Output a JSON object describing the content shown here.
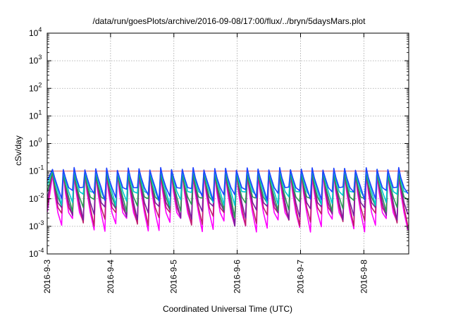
{
  "chart_data": {
    "type": "line",
    "title": "/data/run/goesPlots/archive/2016-09-08/17:00/flux/../bryn/5daysMars.plot",
    "xlabel": "Coordinated Universal Time (UTC)",
    "ylabel": "cSv/day",
    "y_scale": "log",
    "ylim": [
      0.0001,
      10000
    ],
    "xlim": [
      "2016-09-03T00:00",
      "2016-09-08T17:00"
    ],
    "x_ticks": [
      "2016-9-3",
      "2016-9-4",
      "2016-9-5",
      "2016-9-6",
      "2016-9-7",
      "2016-9-8"
    ],
    "y_ticks": [
      {
        "base": "10",
        "exp": "-4"
      },
      {
        "base": "10",
        "exp": "-3"
      },
      {
        "base": "10",
        "exp": "-2"
      },
      {
        "base": "10",
        "exp": "-1"
      },
      {
        "base": "10",
        "exp": "0"
      },
      {
        "base": "10",
        "exp": "1"
      },
      {
        "base": "10",
        "exp": "2"
      },
      {
        "base": "10",
        "exp": "3"
      },
      {
        "base": "10",
        "exp": "4"
      }
    ],
    "grid": true,
    "reference_line": {
      "y": 0.1,
      "color": "#d9362b"
    },
    "oscillation": {
      "period_hours": 4.1,
      "first_peak": "2016-09-03T02:00",
      "dip_dates": [
        "2016-09-05T21:30"
      ]
    },
    "series": [
      {
        "color": "#ff00ff",
        "peak": 0.07,
        "trough": 0.0011
      },
      {
        "color": "#c0206a",
        "peak": 0.09,
        "trough": 0.0018
      },
      {
        "color": "#7a1fa0",
        "peak": 0.1,
        "trough": 0.003
      },
      {
        "color": "#2a9a50",
        "peak": 0.08,
        "trough": 0.006
      },
      {
        "color": "#00c8d0",
        "peak": 0.11,
        "trough": 0.01
      },
      {
        "color": "#2040ff",
        "peak": 0.12,
        "trough": 0.015
      }
    ]
  }
}
